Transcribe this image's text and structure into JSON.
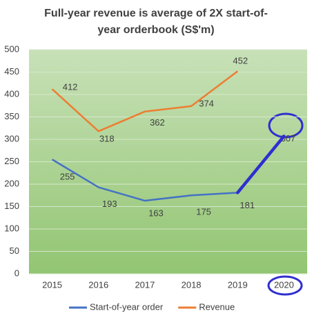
{
  "chart_data": {
    "type": "line",
    "title": "Full-year revenue is average of 2X start-of-year orderbook (S$'m)",
    "categories": [
      "2015",
      "2016",
      "2017",
      "2018",
      "2019",
      "2020"
    ],
    "series": [
      {
        "name": "Start-of-year order",
        "color": "#4472c4",
        "values": [
          255,
          193,
          163,
          175,
          181,
          307
        ]
      },
      {
        "name": "Revenue",
        "color": "#ed7d31",
        "values": [
          412,
          318,
          362,
          374,
          452,
          null
        ]
      }
    ],
    "ylim": [
      0,
      500
    ],
    "yticks": [
      0,
      50,
      100,
      150,
      200,
      250,
      300,
      350,
      400,
      450,
      500
    ],
    "grid": true,
    "legend": "bottom"
  }
}
